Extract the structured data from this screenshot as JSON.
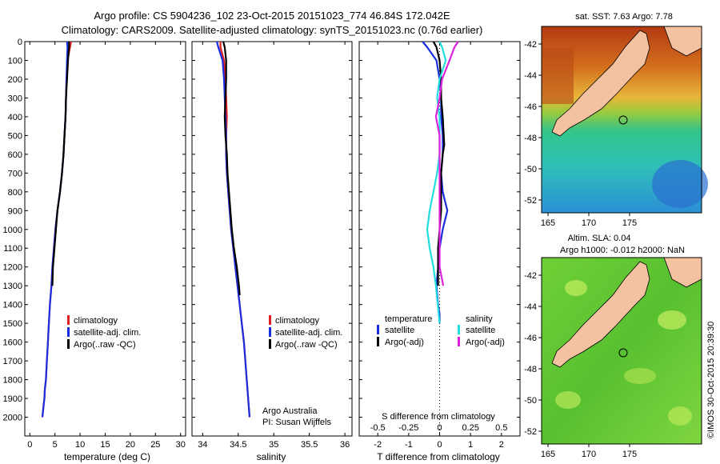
{
  "header": {
    "title_line1": "Argo profile: CS 5904236_102 23-Oct-2015 20151023_774 46.84S 172.042E",
    "title_line2": "Climatology: CARS2009. Satellite-adjusted climatology: synTS_20151023.nc (0.76d earlier)"
  },
  "map_sst": {
    "title": "sat. SST: 7.63 Argo: 7.78",
    "yticks": [
      "-42",
      "-44",
      "-46",
      "-48",
      "-50",
      "-52"
    ],
    "xticks": [
      "165",
      "170",
      "175"
    ]
  },
  "map_sla": {
    "title_line1": "Altim. SLA: 0.04",
    "title_line2": "Argo h1000: -0.012 h2000: NaN",
    "yticks": [
      "-42",
      "-44",
      "-46",
      "-48",
      "-50",
      "-52"
    ],
    "xticks": [
      "165",
      "170",
      "175"
    ],
    "watermark": "©IMOS 30-Oct-2015 20:39:30"
  },
  "panel_notes": {
    "institution": "Argo Australia",
    "pi": "PI: Susan Wijffels"
  },
  "colors": {
    "clim": "#e02020",
    "sat": "#1a2ee0",
    "argo": "#000000",
    "sat_s": "#22dddd",
    "argo_s": "#dd22dd"
  },
  "chart_data": [
    {
      "type": "line",
      "xlabel": "temperature (deg C)",
      "ylabel": "",
      "xlim": [
        -1,
        31
      ],
      "ylim": [
        2100,
        0
      ],
      "xticks": [
        "0",
        "5",
        "10",
        "15",
        "20",
        "25",
        "30"
      ],
      "yticks": [
        "0",
        "100",
        "200",
        "300",
        "400",
        "500",
        "600",
        "700",
        "800",
        "900",
        "1000",
        "1100",
        "1200",
        "1300",
        "1400",
        "1500",
        "1600",
        "1700",
        "1800",
        "1900",
        "2000"
      ],
      "legend_position": "lower-center",
      "series": [
        {
          "name": "climatology",
          "color": "#e02020",
          "x": [
            8.2,
            8.0,
            7.5,
            7.3,
            7.2,
            7.1,
            6.9,
            6.7,
            6.4,
            6.0,
            5.5,
            5.1,
            4.8,
            4.5,
            4.3,
            4.0,
            3.8,
            3.6,
            3.4,
            3.2,
            3.0,
            2.9,
            2.7,
            2.5
          ],
          "y": [
            0,
            30,
            100,
            200,
            300,
            400,
            500,
            600,
            700,
            800,
            900,
            1000,
            1100,
            1200,
            1300,
            1400,
            1500,
            1600,
            1700,
            1800,
            1850,
            1900,
            1950,
            2000
          ]
        },
        {
          "name": "satellite-adj. clim.",
          "color": "#1a2ee0",
          "x": [
            7.4,
            7.5,
            7.4,
            7.3,
            7.2,
            7.1,
            6.9,
            6.7,
            6.4,
            6.0,
            5.5,
            5.1,
            4.8,
            4.5,
            4.3,
            4.0,
            3.8,
            3.6,
            3.4,
            3.2,
            3.0,
            2.9,
            2.7,
            2.5
          ],
          "y": [
            0,
            30,
            100,
            200,
            300,
            400,
            500,
            600,
            700,
            800,
            900,
            1000,
            1100,
            1200,
            1300,
            1400,
            1500,
            1600,
            1700,
            1800,
            1850,
            1900,
            1950,
            2000
          ]
        },
        {
          "name": "Argo(..raw -QC)",
          "color": "#000000",
          "x": [
            7.8,
            7.8,
            7.6,
            7.4,
            7.2,
            7.1,
            6.9,
            6.7,
            6.4,
            6.0,
            5.5,
            5.2,
            4.9,
            4.6,
            4.5
          ],
          "y": [
            0,
            30,
            100,
            200,
            300,
            400,
            500,
            600,
            700,
            800,
            900,
            1000,
            1100,
            1200,
            1300
          ]
        }
      ]
    },
    {
      "type": "line",
      "xlabel": "salinity",
      "ylabel": "",
      "xlim": [
        33.85,
        36.1
      ],
      "ylim": [
        2100,
        0
      ],
      "xticks": [
        "34",
        "34.5",
        "35",
        "35.5",
        "36"
      ],
      "legend_position": "lower-center",
      "series": [
        {
          "name": "climatology",
          "color": "#e02020",
          "x": [
            34.25,
            34.25,
            34.3,
            34.32,
            34.33,
            34.34,
            34.33,
            34.33,
            34.34,
            34.36,
            34.38,
            34.4,
            34.43,
            34.46,
            34.49,
            34.52,
            34.55,
            34.58,
            34.6,
            34.62,
            34.64,
            34.66
          ],
          "y": [
            0,
            30,
            100,
            200,
            300,
            400,
            500,
            600,
            700,
            800,
            900,
            1000,
            1100,
            1200,
            1300,
            1400,
            1500,
            1600,
            1700,
            1800,
            1900,
            2000
          ]
        },
        {
          "name": "satellite-adj. clim.",
          "color": "#1a2ee0",
          "x": [
            34.2,
            34.22,
            34.28,
            34.3,
            34.31,
            34.32,
            34.33,
            34.33,
            34.34,
            34.36,
            34.38,
            34.4,
            34.43,
            34.46,
            34.49,
            34.52,
            34.55,
            34.58,
            34.6,
            34.62,
            34.64,
            34.66
          ],
          "y": [
            0,
            30,
            100,
            200,
            300,
            400,
            500,
            600,
            700,
            800,
            900,
            1000,
            1100,
            1200,
            1300,
            1400,
            1500,
            1600,
            1700,
            1800,
            1900,
            2000
          ]
        },
        {
          "name": "Argo(..raw -QC)",
          "color": "#000000",
          "x": [
            34.29,
            34.31,
            34.33,
            34.33,
            34.32,
            34.31,
            34.32,
            34.34,
            34.35,
            34.37,
            34.39,
            34.41,
            34.44,
            34.48,
            34.51,
            34.52
          ],
          "y": [
            0,
            30,
            100,
            200,
            300,
            400,
            500,
            600,
            700,
            800,
            900,
            1000,
            1100,
            1200,
            1300,
            1350
          ]
        }
      ]
    },
    {
      "type": "line",
      "xlabel": "T difference from climatology",
      "ylabel": "",
      "xlim": [
        -2.6,
        2.6
      ],
      "ylim": [
        2100,
        0
      ],
      "xticks": [
        "-2",
        "-1",
        "0",
        "1",
        "2"
      ],
      "top_axis_label": "S difference from climatology",
      "top_xticks": [
        "-0.5",
        "-0.25",
        "0",
        "0.25",
        "0.5"
      ],
      "legend_position": "lower-center",
      "legend_group_titles": [
        "temperature",
        "salinity"
      ],
      "series": [
        {
          "name": "satellite",
          "group": "temperature",
          "color": "#1a2ee0",
          "x": [
            -0.55,
            -0.4,
            -0.1,
            0.0,
            0.05,
            0.05,
            0.1,
            0.1,
            0.05,
            0.1,
            0.25,
            0.1,
            0.0,
            -0.05,
            -0.1,
            -0.05,
            0.0,
            0.0
          ],
          "y": [
            0,
            30,
            100,
            200,
            300,
            400,
            500,
            600,
            700,
            800,
            900,
            1000,
            1100,
            1200,
            1300,
            1400,
            1450,
            1500
          ]
        },
        {
          "name": "Argo(-adj)",
          "group": "temperature",
          "color": "#000000",
          "x": [
            -0.2,
            -0.1,
            0.0,
            0.05,
            0.05,
            0.1,
            0.15,
            0.1,
            0.05,
            0.05,
            0.05,
            0.0,
            -0.05,
            -0.05
          ],
          "y": [
            0,
            30,
            100,
            200,
            300,
            400,
            550,
            600,
            700,
            800,
            900,
            1000,
            1100,
            1300
          ]
        },
        {
          "name": "satellite",
          "group": "salinity",
          "color": "#22dddd",
          "x": [
            0.0,
            0.02,
            0.05,
            0.0,
            -0.02,
            0.0,
            0.0,
            0.0,
            -0.02,
            -0.05,
            -0.08,
            -0.1,
            -0.08,
            -0.05,
            -0.03,
            0.0
          ],
          "y": [
            0,
            30,
            100,
            200,
            300,
            400,
            500,
            600,
            700,
            800,
            900,
            1000,
            1100,
            1200,
            1300,
            1500
          ]
        },
        {
          "name": "Argo(-adj)",
          "group": "salinity",
          "color": "#dd22dd",
          "x": [
            0.15,
            0.12,
            0.08,
            0.02,
            0.0,
            -0.03,
            0.0,
            0.0,
            0.0,
            0.0,
            0.0,
            0.0,
            0.0,
            0.03
          ],
          "y": [
            0,
            30,
            100,
            200,
            300,
            400,
            500,
            600,
            700,
            800,
            1000,
            1100,
            1200,
            1300
          ]
        }
      ]
    }
  ]
}
